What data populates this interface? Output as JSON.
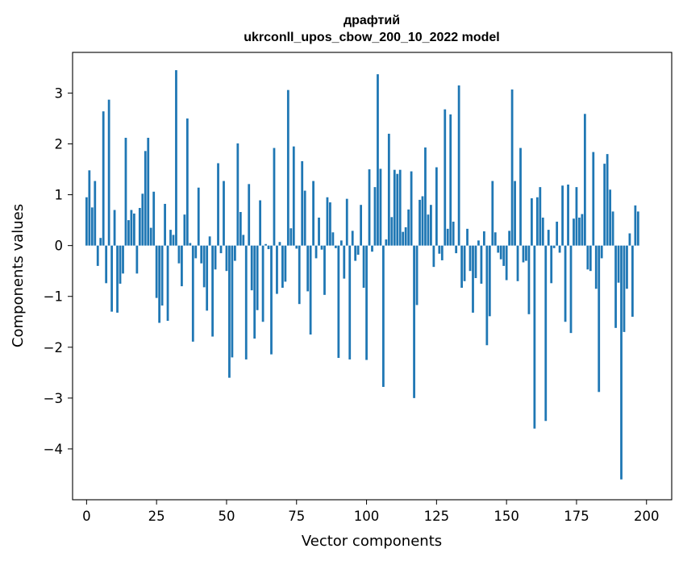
{
  "chart_data": {
    "type": "bar",
    "title_line1": "драфтий",
    "title_line2": "ukrconll_upos_cbow_200_10_2022 model",
    "xlabel": "Vector components",
    "ylabel": "Components values",
    "xlim": [
      -5.0,
      209.0
    ],
    "ylim": [
      -5.0,
      3.8
    ],
    "xticks": [
      0,
      25,
      50,
      75,
      100,
      125,
      150,
      175,
      200
    ],
    "xtick_labels": [
      "0",
      "25",
      "50",
      "75",
      "100",
      "125",
      "150",
      "175",
      "200"
    ],
    "yticks": [
      -4,
      -3,
      -2,
      -1,
      0,
      1,
      2,
      3
    ],
    "ytick_labels": [
      "−4",
      "−3",
      "−2",
      "−1",
      "0",
      "1",
      "2",
      "3"
    ],
    "bar_color": "#1f77b4",
    "grid": false,
    "legend": "none",
    "values": [
      0.95,
      1.48,
      0.75,
      1.27,
      -0.4,
      0.15,
      2.64,
      -0.74,
      2.87,
      -1.3,
      0.7,
      -1.32,
      -0.75,
      -0.55,
      2.12,
      0.5,
      0.7,
      0.63,
      -0.55,
      0.74,
      1.02,
      1.86,
      2.12,
      0.35,
      1.06,
      -1.03,
      -1.52,
      -1.18,
      0.82,
      -1.48,
      0.31,
      0.21,
      3.45,
      -0.35,
      -0.8,
      0.61,
      2.5,
      0.05,
      -1.89,
      -0.25,
      1.14,
      -0.35,
      -0.82,
      -1.28,
      0.18,
      -1.79,
      -0.47,
      1.62,
      -0.15,
      1.27,
      -0.5,
      -2.6,
      -2.2,
      -0.3,
      2.01,
      0.66,
      0.21,
      -2.24,
      1.21,
      -0.88,
      -1.83,
      -1.27,
      0.89,
      -1.5,
      0.03,
      -0.07,
      -2.14,
      1.92,
      -0.95,
      0.07,
      -0.83,
      -0.71,
      3.06,
      0.34,
      1.95,
      -0.06,
      -1.15,
      1.66,
      1.08,
      -0.9,
      -1.75,
      1.27,
      -0.25,
      0.55,
      -0.08,
      -0.97,
      0.95,
      0.85,
      0.26,
      -0.05,
      -2.21,
      0.1,
      -0.65,
      0.92,
      -2.24,
      0.29,
      -0.3,
      -0.18,
      0.8,
      -0.83,
      -2.25,
      1.5,
      -0.12,
      1.15,
      3.37,
      1.51,
      -2.78,
      0.12,
      2.2,
      0.56,
      1.49,
      1.41,
      1.49,
      0.27,
      0.36,
      0.71,
      1.46,
      -3.0,
      -1.17,
      0.9,
      0.97,
      1.93,
      0.61,
      0.8,
      -0.42,
      1.54,
      -0.16,
      -0.29,
      2.68,
      0.33,
      2.58,
      0.47,
      -0.15,
      3.15,
      -0.83,
      -0.7,
      0.33,
      -0.5,
      -1.32,
      -0.64,
      0.1,
      -0.75,
      0.28,
      -1.96,
      -1.39,
      1.27,
      0.26,
      -0.14,
      -0.27,
      -0.4,
      -0.68,
      0.29,
      3.07,
      1.27,
      -0.7,
      1.92,
      -0.33,
      -0.3,
      -1.35,
      0.93,
      -3.6,
      0.95,
      1.15,
      0.55,
      -3.45,
      0.31,
      -0.74,
      -0.05,
      0.47,
      -0.14,
      1.18,
      -1.5,
      1.2,
      -1.72,
      0.53,
      1.15,
      0.55,
      0.62,
      2.59,
      -0.47,
      -0.5,
      1.84,
      -0.85,
      -2.88,
      -0.25,
      1.61,
      1.8,
      1.1,
      0.67,
      -1.62,
      -0.73,
      -4.6,
      -1.7,
      -0.85,
      0.24,
      -1.4,
      0.79,
      0.67
    ]
  }
}
